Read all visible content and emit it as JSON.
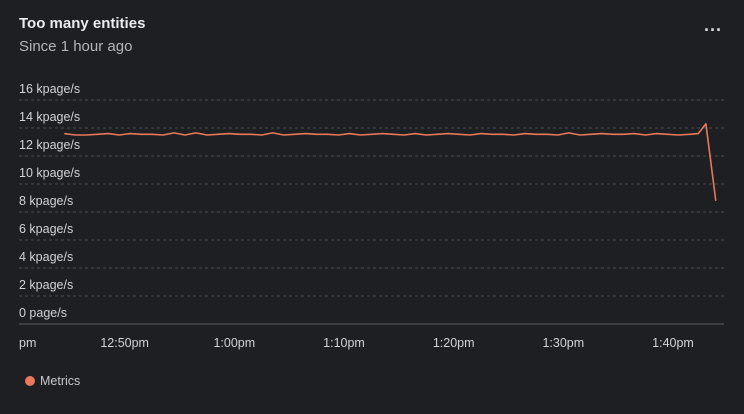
{
  "header": {
    "title": "Too many entities",
    "subtitle": "Since 1 hour ago",
    "more_label": "..."
  },
  "legend": {
    "label": "Metrics"
  },
  "colors": {
    "series": "#e9795a",
    "grid": "#4a4d52",
    "axis": "#5a5d62"
  },
  "chart_data": {
    "type": "line",
    "y_tick_labels": [
      "16 kpage/s",
      "14 kpage/s",
      "12 kpage/s",
      "10 kpage/s",
      "8 kpage/s",
      "6 kpage/s",
      "4 kpage/s",
      "2 kpage/s",
      "0 page/s"
    ],
    "y_ticks": [
      16,
      14,
      12,
      10,
      8,
      6,
      4,
      2,
      0
    ],
    "ylim": [
      0,
      16
    ],
    "x_tick_labels": [
      "pm",
      "12:50pm",
      "1:00pm",
      "1:10pm",
      "1:20pm",
      "1:30pm",
      "1:40pm"
    ],
    "x_ticks_min": [
      40,
      50,
      60,
      70,
      80,
      90,
      100
    ],
    "xlim_min": [
      40,
      104
    ],
    "grid": true,
    "legend_position": "bottom-left",
    "series": [
      {
        "name": "Metrics",
        "x_min": [
          44.5,
          45.5,
          46.5,
          47.5,
          48.5,
          49.5,
          50.5,
          51.5,
          52.5,
          53.5,
          54.5,
          55.5,
          56.5,
          57.5,
          58.5,
          59.5,
          60.5,
          61.5,
          62.5,
          63.5,
          64.5,
          65.5,
          66.5,
          67.5,
          68.5,
          69.5,
          70.5,
          71.5,
          72.5,
          73.5,
          74.5,
          75.5,
          76.5,
          77.5,
          78.5,
          79.5,
          80.5,
          81.5,
          82.5,
          83.5,
          84.5,
          85.5,
          86.5,
          87.5,
          88.5,
          89.5,
          90.5,
          91.5,
          92.5,
          93.5,
          94.5,
          95.5,
          96.5,
          97.5,
          98.5,
          99.5,
          100.5,
          101.5,
          102.3,
          103.0,
          103.9
        ],
        "y_kpage": [
          13.6,
          13.5,
          13.5,
          13.55,
          13.6,
          13.5,
          13.6,
          13.55,
          13.55,
          13.5,
          13.65,
          13.5,
          13.65,
          13.5,
          13.55,
          13.6,
          13.55,
          13.55,
          13.5,
          13.65,
          13.5,
          13.55,
          13.6,
          13.55,
          13.55,
          13.5,
          13.6,
          13.5,
          13.55,
          13.6,
          13.55,
          13.5,
          13.6,
          13.5,
          13.55,
          13.6,
          13.55,
          13.5,
          13.6,
          13.55,
          13.55,
          13.5,
          13.6,
          13.55,
          13.55,
          13.5,
          13.65,
          13.5,
          13.55,
          13.6,
          13.55,
          13.55,
          13.6,
          13.5,
          13.6,
          13.55,
          13.5,
          13.55,
          13.6,
          14.3,
          8.8
        ]
      }
    ]
  }
}
